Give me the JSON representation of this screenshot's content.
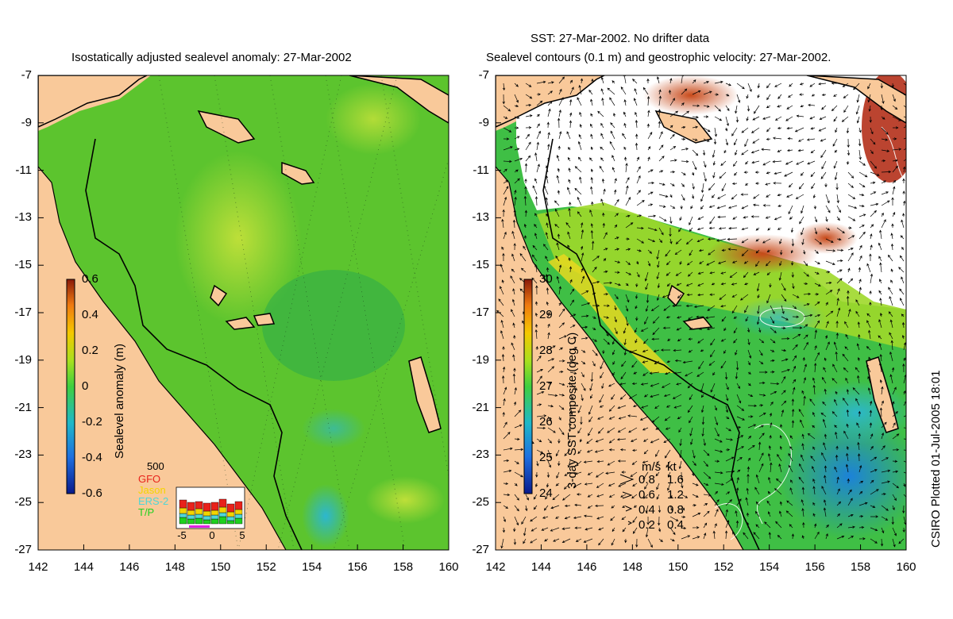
{
  "left_panel": {
    "title": "Isostatically adjusted sealevel anomaly: 27-Mar-2002",
    "colorbar_label": "Sealevel anomaly (m)",
    "colorbar_ticks": [
      "0.6",
      "0.4",
      "0.2",
      "0",
      "-0.2",
      "-0.4",
      "-0.6"
    ],
    "colorbar_range": [
      -0.6,
      0.6
    ],
    "inset": {
      "ymax_label": "500",
      "legend": [
        {
          "name": "GFO",
          "color": "#e8221b"
        },
        {
          "name": "Jason",
          "color": "#f3d400"
        },
        {
          "name": "ERS-2",
          "color": "#4fd6d6"
        },
        {
          "name": "T/P",
          "color": "#1fd11f"
        }
      ],
      "xticks": [
        "-5",
        "0",
        "5"
      ]
    }
  },
  "right_panel": {
    "title_line1": "SST: 27-Mar-2002. No drifter data",
    "title_line2": "Sealevel contours (0.1 m) and geostrophic velocity: 27-Mar-2002.",
    "colorbar_label": "3-day SST composite (deg C)",
    "colorbar_ticks": [
      "30",
      "29",
      "28",
      "27",
      "26",
      "25",
      "24"
    ],
    "colorbar_range": [
      24,
      30
    ],
    "velocity_key": {
      "header_ms": "m/s",
      "header_kt": "kt",
      "rows": [
        {
          "ms": "0.8",
          "kt": "1.6"
        },
        {
          "ms": "0.6",
          "kt": "1.2"
        },
        {
          "ms": "0.4",
          "kt": "0.8"
        },
        {
          "ms": "0.2",
          "kt": "0.4"
        }
      ]
    }
  },
  "axes": {
    "y_ticks": [
      "-7",
      "-9",
      "-11",
      "-13",
      "-15",
      "-17",
      "-19",
      "-21",
      "-23",
      "-25",
      "-27"
    ],
    "x_ticks": [
      "142",
      "144",
      "146",
      "148",
      "150",
      "152",
      "154",
      "156",
      "158",
      "160"
    ]
  },
  "credit": "CSIRO Plotted 01-Jul-2005 18:01",
  "colors": {
    "land": "#f9c99a",
    "ocean_green": "#3cb83c",
    "ocean_light": "#8fdc2a",
    "ocean_blue": "#2aa6c8",
    "cloud": "#ffffff",
    "warm": "#c8501e",
    "coast": "#000000"
  }
}
